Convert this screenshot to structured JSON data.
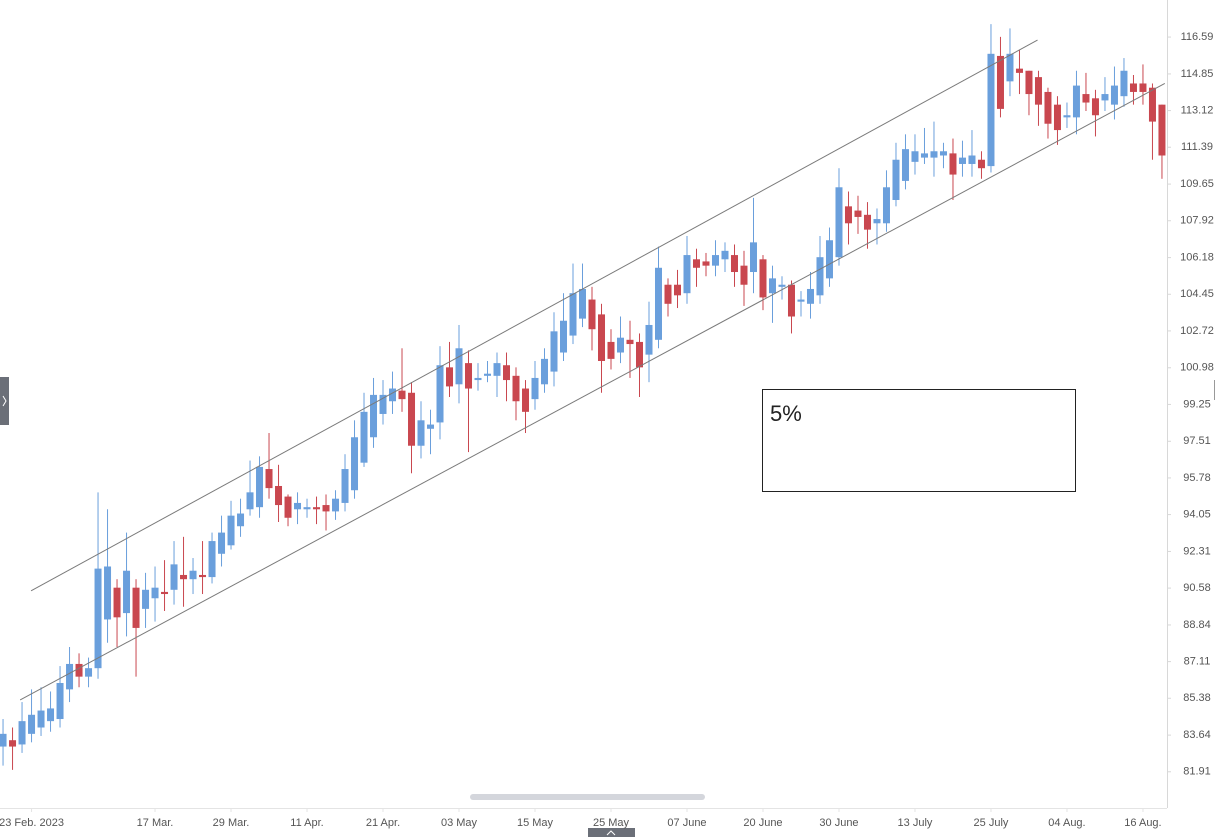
{
  "chart_data": {
    "type": "candlestick",
    "up_color": "#6a9fdc",
    "down_color": "#c9474f",
    "ylim": [
      80.2,
      118.34
    ],
    "yticks": [
      116.59,
      114.85,
      113.12,
      111.39,
      109.65,
      107.92,
      106.18,
      104.45,
      102.72,
      100.98,
      99.25,
      97.51,
      95.78,
      94.05,
      92.31,
      90.58,
      88.84,
      87.11,
      85.38,
      83.64,
      81.91
    ],
    "xlim": [
      -0.32,
      122.53
    ],
    "xticks": [
      {
        "value": 3,
        "label": "23 Feb. 2023"
      },
      {
        "value": 16,
        "label": "17 Mar."
      },
      {
        "value": 24,
        "label": "29 Mar."
      },
      {
        "value": 32,
        "label": "11 Apr."
      },
      {
        "value": 40,
        "label": "21 Apr."
      },
      {
        "value": 48,
        "label": "03 May"
      },
      {
        "value": 56,
        "label": "15 May"
      },
      {
        "value": 64,
        "label": "25 May"
      },
      {
        "value": 72,
        "label": "07 June"
      },
      {
        "value": 80,
        "label": "20 June"
      },
      {
        "value": 88,
        "label": "30 June"
      },
      {
        "value": 96,
        "label": "13 July"
      },
      {
        "value": 104,
        "label": "25 July"
      },
      {
        "value": 112,
        "label": "04 Aug."
      },
      {
        "value": 120,
        "label": "16 Aug."
      }
    ],
    "open": [
      83.1,
      83.4,
      83.2,
      83.7,
      84.0,
      84.3,
      84.4,
      85.8,
      87.0,
      86.4,
      86.8,
      89.1,
      90.6,
      89.4,
      90.6,
      89.6,
      90.1,
      90.4,
      90.5,
      91.2,
      91.0,
      91.2,
      91.1,
      92.2,
      92.6,
      93.5,
      94.3,
      94.4,
      96.2,
      95.4,
      94.9,
      94.3,
      94.3,
      94.4,
      94.5,
      94.2,
      94.6,
      95.2,
      96.5,
      97.7,
      98.8,
      99.4,
      99.9,
      99.8,
      97.3,
      98.1,
      98.4,
      101.0,
      100.2,
      101.2,
      100.4,
      100.6,
      100.6,
      101.1,
      100.6,
      100.0,
      99.5,
      100.2,
      100.8,
      101.7,
      102.5,
      103.3,
      104.2,
      103.5,
      102.2,
      101.7,
      102.3,
      102.2,
      101.6,
      102.3,
      104.9,
      104.9,
      104.5,
      106.1,
      106.0,
      105.8,
      106.1,
      106.3,
      105.8,
      105.5,
      106.1,
      104.5,
      104.8,
      104.9,
      104.1,
      104.0,
      104.4,
      105.2,
      106.2,
      108.6,
      108.4,
      108.2,
      107.8,
      107.8,
      108.9,
      109.8,
      110.7,
      110.9,
      110.9,
      111.0,
      111.1,
      110.6,
      110.6,
      110.8,
      110.5,
      115.7,
      114.5,
      115.1,
      115.0,
      114.7,
      114.0,
      113.4,
      112.8,
      112.8,
      113.9,
      113.7,
      113.6,
      113.4,
      113.8,
      114.4,
      114.4,
      114.2,
      113.4
    ],
    "high": [
      84.4,
      84.0,
      85.2,
      85.8,
      85.9,
      85.7,
      86.9,
      87.8,
      87.5,
      87.3,
      95.1,
      94.3,
      91.0,
      93.2,
      91.0,
      91.3,
      91.6,
      91.9,
      92.8,
      93.0,
      92.0,
      92.8,
      93.2,
      94.0,
      94.7,
      94.8,
      96.6,
      96.8,
      97.9,
      96.4,
      95.0,
      95.1,
      94.8,
      94.9,
      95.0,
      95.2,
      96.9,
      98.5,
      99.8,
      100.5,
      100.4,
      100.8,
      101.9,
      100.3,
      99.4,
      99.0,
      102.0,
      102.2,
      103.0,
      101.8,
      101.2,
      101.3,
      101.7,
      101.7,
      101.0,
      100.4,
      101.3,
      101.9,
      103.6,
      104.5,
      105.9,
      105.9,
      104.8,
      104.0,
      102.8,
      103.4,
      103.2,
      102.6,
      104.1,
      106.7,
      105.2,
      105.6,
      107.2,
      106.6,
      106.4,
      107.0,
      106.9,
      106.8,
      106.5,
      109.0,
      106.3,
      105.8,
      105.3,
      105.1,
      104.6,
      105.5,
      107.2,
      107.6,
      110.4,
      109.3,
      109.1,
      108.8,
      108.5,
      110.3,
      111.6,
      112.0,
      112.0,
      112.3,
      112.6,
      111.6,
      111.8,
      111.7,
      112.2,
      111.2,
      117.2,
      116.6,
      117.0,
      116.0,
      115.0,
      115.0,
      114.2,
      113.8,
      113.5,
      115.0,
      114.9,
      114.1,
      114.7,
      115.2,
      115.6,
      114.8,
      115.3,
      114.4,
      113.4
    ],
    "low": [
      82.2,
      82.0,
      82.8,
      83.3,
      83.6,
      83.8,
      84.0,
      85.2,
      85.9,
      85.9,
      86.3,
      88.0,
      87.8,
      88.3,
      86.4,
      88.7,
      89.0,
      89.5,
      89.8,
      89.7,
      90.3,
      90.3,
      90.8,
      91.6,
      92.4,
      93.0,
      94.0,
      93.9,
      94.8,
      93.7,
      93.5,
      93.6,
      93.9,
      93.6,
      93.3,
      93.8,
      94.2,
      94.8,
      96.3,
      97.2,
      98.3,
      98.8,
      98.9,
      96.0,
      96.7,
      96.9,
      97.6,
      99.6,
      99.3,
      97.0,
      99.9,
      100.3,
      99.6,
      99.4,
      98.5,
      97.9,
      99.0,
      99.8,
      100.1,
      101.3,
      102.1,
      102.9,
      101.8,
      99.8,
      100.9,
      101.2,
      100.5,
      99.6,
      100.3,
      101.9,
      103.4,
      103.8,
      104.0,
      104.8,
      105.3,
      105.3,
      105.5,
      104.8,
      103.9,
      104.5,
      103.7,
      103.1,
      104.2,
      102.6,
      103.4,
      103.3,
      104.0,
      104.8,
      105.8,
      106.8,
      107.3,
      106.6,
      106.8,
      107.4,
      108.6,
      109.4,
      110.1,
      110.6,
      110.0,
      110.4,
      108.9,
      110.0,
      110.0,
      109.9,
      110.2,
      112.8,
      113.8,
      113.9,
      112.9,
      112.4,
      111.8,
      111.5,
      112.3,
      112.0,
      113.1,
      111.9,
      113.1,
      112.7,
      113.3,
      113.4,
      113.4,
      110.8,
      109.9
    ],
    "close": [
      83.7,
      83.1,
      84.3,
      84.6,
      84.8,
      84.9,
      86.1,
      87.0,
      86.4,
      86.8,
      91.5,
      91.6,
      89.2,
      91.4,
      88.7,
      90.5,
      90.6,
      90.3,
      91.7,
      91.0,
      91.4,
      91.1,
      92.8,
      93.2,
      94.0,
      94.1,
      95.1,
      96.3,
      95.3,
      94.5,
      93.9,
      94.6,
      94.4,
      94.3,
      94.2,
      94.8,
      96.2,
      97.7,
      98.9,
      99.7,
      99.7,
      100.0,
      99.5,
      97.3,
      98.5,
      98.3,
      101.1,
      100.1,
      101.9,
      100.0,
      100.5,
      100.7,
      101.2,
      100.4,
      99.4,
      98.9,
      100.5,
      101.4,
      102.7,
      103.2,
      104.5,
      104.7,
      102.8,
      101.3,
      101.4,
      102.4,
      102.1,
      101.0,
      103.0,
      105.7,
      104.0,
      104.4,
      106.3,
      105.7,
      105.8,
      106.3,
      106.5,
      105.5,
      104.9,
      106.9,
      104.3,
      105.2,
      104.9,
      103.4,
      104.2,
      104.7,
      106.2,
      107.0,
      109.5,
      107.8,
      108.1,
      107.5,
      108.0,
      109.5,
      110.8,
      111.3,
      111.2,
      111.1,
      111.2,
      111.2,
      110.1,
      110.9,
      111.0,
      110.4,
      115.8,
      113.2,
      115.8,
      114.9,
      113.9,
      113.4,
      112.5,
      112.2,
      112.9,
      114.3,
      113.5,
      112.9,
      113.9,
      114.3,
      115.0,
      114.0,
      114.0,
      112.6,
      111.0
    ],
    "channel": {
      "upper": {
        "x": [
          2.95,
          108.9
        ],
        "y": [
          90.45,
          116.45
        ]
      },
      "lower": {
        "x": [
          1.8,
          122.3
        ],
        "y": [
          85.3,
          114.4
        ]
      }
    },
    "annotation": "5%"
  }
}
